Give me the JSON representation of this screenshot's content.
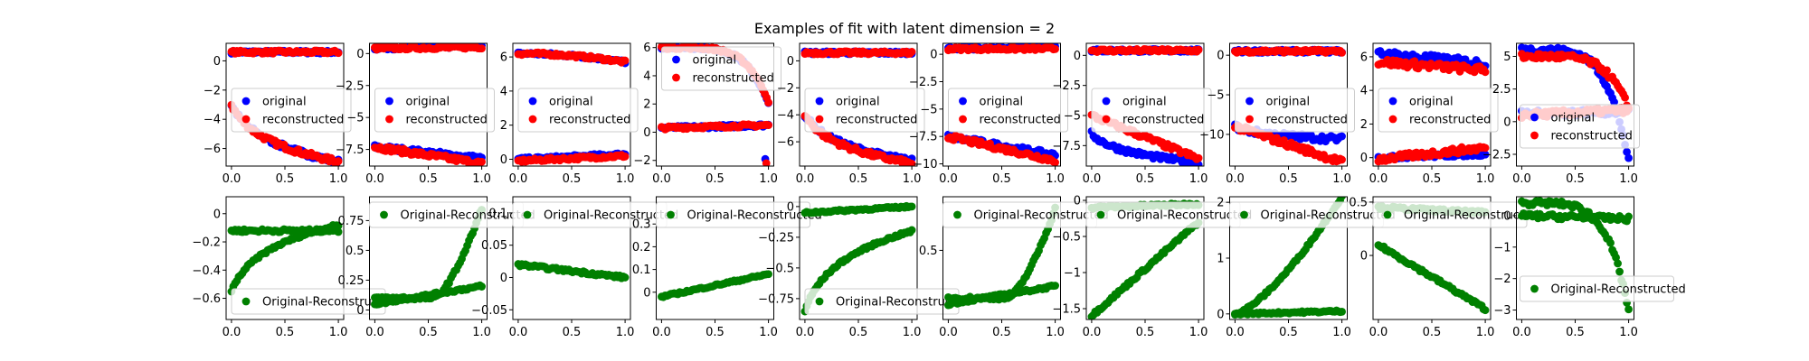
{
  "figure": {
    "title": "Examples of fit with latent dimension = 2",
    "colors": {
      "original": "#0000ff",
      "reconstructed": "#ff0000",
      "difference": "#008000",
      "axes": "#000000",
      "legend_border": "#cccccc"
    }
  },
  "chart_data": {
    "type": "scatter",
    "title": "Examples of fit with latent dimension = 2",
    "panels_per_row": 10,
    "top_row": [
      {
        "ylim": [
          -7.2,
          1.2
        ],
        "yticks": [
          0,
          -2,
          -4,
          -6
        ],
        "xticks": [
          0.0,
          0.5,
          1.0
        ],
        "series": [
          {
            "name": "original",
            "curves": [
              {
                "kind": "flat",
                "y0": 0.6,
                "y1": 0.6,
                "noise": 0.05
              },
              {
                "kind": "logdecay",
                "y0": -3.0,
                "y1": -6.9,
                "noise": 0.08
              }
            ]
          },
          {
            "name": "reconstructed",
            "curves": [
              {
                "kind": "flat",
                "y0": 0.6,
                "y1": 0.6,
                "noise": 0.05
              },
              {
                "kind": "logdecay",
                "y0": -3.0,
                "y1": -6.9,
                "noise": 0.08
              }
            ]
          }
        ],
        "legend_position": "center-left"
      },
      {
        "ylim": [
          -8.8,
          0.8
        ],
        "yticks": [
          0.0,
          -2.5,
          -5.0,
          -7.5
        ],
        "xticks": [
          0.0,
          0.5,
          1.0
        ],
        "series": [
          {
            "name": "original",
            "curves": [
              {
                "kind": "flat",
                "y0": 0.4,
                "y1": 0.6,
                "noise": 0.05
              },
              {
                "kind": "linear",
                "y0": -7.3,
                "y1": -8.2,
                "noise": 0.08
              }
            ]
          },
          {
            "name": "reconstructed",
            "curves": [
              {
                "kind": "flat",
                "y0": 0.4,
                "y1": 0.5,
                "noise": 0.05
              },
              {
                "kind": "linear",
                "y0": -7.3,
                "y1": -8.6,
                "noise": 0.08
              }
            ]
          }
        ],
        "legend_position": "center-left"
      },
      {
        "ylim": [
          -0.4,
          6.8
        ],
        "yticks": [
          0,
          2,
          4,
          6
        ],
        "xticks": [
          0.0,
          0.5,
          1.0
        ],
        "series": [
          {
            "name": "original",
            "curves": [
              {
                "kind": "convexdown",
                "y0": 6.2,
                "y1": 5.7,
                "noise": 0.05
              },
              {
                "kind": "linear",
                "y0": 0.0,
                "y1": 0.3,
                "noise": 0.05
              }
            ]
          },
          {
            "name": "reconstructed",
            "curves": [
              {
                "kind": "convexdown",
                "y0": 6.2,
                "y1": 5.7,
                "noise": 0.05
              },
              {
                "kind": "linear",
                "y0": -0.1,
                "y1": 0.2,
                "noise": 0.05
              }
            ]
          }
        ],
        "legend_position": "center-left"
      },
      {
        "ylim": [
          -2.4,
          6.3
        ],
        "yticks": [
          6,
          4,
          2,
          0,
          -2
        ],
        "xticks": [
          0.0,
          0.5,
          1.0
        ],
        "series": [
          {
            "name": "original",
            "curves": [
              {
                "kind": "flat",
                "y0": 0.3,
                "y1": 0.5,
                "noise": 0.05
              },
              {
                "kind": "drop",
                "y0": 6.0,
                "y1": 2.0,
                "noise": 0.05
              },
              {
                "kind": "point",
                "x": 0.97,
                "y": -1.9
              }
            ]
          },
          {
            "name": "reconstructed",
            "curves": [
              {
                "kind": "flat",
                "y0": 0.3,
                "y1": 0.5,
                "noise": 0.05
              },
              {
                "kind": "drop",
                "y0": 6.0,
                "y1": 2.2,
                "noise": 0.05
              },
              {
                "kind": "point",
                "x": 0.98,
                "y": -2.2
              }
            ]
          }
        ],
        "legend_position": "top-left"
      },
      {
        "ylim": [
          -7.8,
          1.3
        ],
        "yticks": [
          0,
          -2,
          -4,
          -6
        ],
        "xticks": [
          0.0,
          0.5,
          1.0
        ],
        "series": [
          {
            "name": "original",
            "curves": [
              {
                "kind": "flat",
                "y0": 0.6,
                "y1": 0.6,
                "noise": 0.05
              },
              {
                "kind": "logdecay",
                "y0": -4.0,
                "y1": -7.4,
                "noise": 0.08
              }
            ]
          },
          {
            "name": "reconstructed",
            "curves": [
              {
                "kind": "flat",
                "y0": 0.6,
                "y1": 0.6,
                "noise": 0.05
              },
              {
                "kind": "logdecay",
                "y0": -4.0,
                "y1": -7.6,
                "noise": 0.08
              }
            ]
          }
        ],
        "legend_position": "center-left"
      },
      {
        "ylim": [
          -10.2,
          1.0
        ],
        "yticks": [
          0.0,
          -2.5,
          -5.0,
          -7.5,
          -10.0
        ],
        "xticks": [
          0.0,
          0.5,
          1.0
        ],
        "series": [
          {
            "name": "original",
            "curves": [
              {
                "kind": "flat",
                "y0": 0.5,
                "y1": 0.7,
                "noise": 0.05
              },
              {
                "kind": "linear",
                "y0": -7.5,
                "y1": -9.2,
                "noise": 0.08
              }
            ]
          },
          {
            "name": "reconstructed",
            "curves": [
              {
                "kind": "flat",
                "y0": 0.5,
                "y1": 0.5,
                "noise": 0.05
              },
              {
                "kind": "linear",
                "y0": -7.5,
                "y1": -9.7,
                "noise": 0.08
              }
            ]
          }
        ],
        "legend_position": "center-left"
      },
      {
        "ylim": [
          -9.2,
          1.0
        ],
        "yticks": [
          0.0,
          -2.5,
          -5.0,
          -7.5
        ],
        "xticks": [
          0.0,
          0.5,
          1.0
        ],
        "series": [
          {
            "name": "original",
            "curves": [
              {
                "kind": "flat",
                "y0": 0.4,
                "y1": 0.4,
                "noise": 0.05
              },
              {
                "kind": "logdecay",
                "y0": -6.5,
                "y1": -8.9,
                "noise": 0.08
              }
            ]
          },
          {
            "name": "reconstructed",
            "curves": [
              {
                "kind": "flat",
                "y0": 0.4,
                "y1": 0.4,
                "noise": 0.05
              },
              {
                "kind": "linear",
                "y0": -5.0,
                "y1": -8.6,
                "noise": 0.08
              }
            ]
          }
        ],
        "legend_position": "center-left"
      },
      {
        "ylim": [
          -14.0,
          1.5
        ],
        "yticks": [
          0,
          -5,
          -10
        ],
        "xticks": [
          0.0,
          0.5,
          1.0
        ],
        "series": [
          {
            "name": "original",
            "curves": [
              {
                "kind": "flat",
                "y0": 0.5,
                "y1": 0.5,
                "noise": 0.05
              },
              {
                "kind": "logdecay",
                "y0": -9.0,
                "y1": -10.6,
                "noise": 0.1
              }
            ]
          },
          {
            "name": "reconstructed",
            "curves": [
              {
                "kind": "flat",
                "y0": 0.5,
                "y1": 0.5,
                "noise": 0.05
              },
              {
                "kind": "linear",
                "y0": -9.0,
                "y1": -13.5,
                "noise": 0.1
              }
            ]
          }
        ],
        "legend_position": "center-left"
      },
      {
        "ylim": [
          -0.5,
          6.8
        ],
        "yticks": [
          0,
          2,
          4,
          6
        ],
        "xticks": [
          0.0,
          0.5,
          1.0
        ],
        "series": [
          {
            "name": "original",
            "curves": [
              {
                "kind": "linear",
                "y0": 6.2,
                "y1": 5.6,
                "noise": 0.12
              },
              {
                "kind": "flat",
                "y0": 0.0,
                "y1": 0.2,
                "noise": 0.05
              }
            ]
          },
          {
            "name": "reconstructed",
            "curves": [
              {
                "kind": "linear",
                "y0": 5.7,
                "y1": 5.2,
                "noise": 0.12
              },
              {
                "kind": "linear",
                "y0": -0.1,
                "y1": 0.6,
                "noise": 0.1
              }
            ]
          }
        ],
        "legend_position": "center-left"
      },
      {
        "ylim": [
          -3.4,
          6.0
        ],
        "yticks": [
          5.0,
          2.5,
          0.0,
          -2.5
        ],
        "xticks": [
          0.0,
          0.5,
          1.0
        ],
        "series": [
          {
            "name": "original",
            "curves": [
              {
                "kind": "drop",
                "y0": 5.5,
                "y1": -3.0,
                "noise": 0.1
              },
              {
                "kind": "flat",
                "y0": 0.6,
                "y1": 0.8,
                "noise": 0.1
              }
            ]
          },
          {
            "name": "reconstructed",
            "curves": [
              {
                "kind": "drop",
                "y0": 5.0,
                "y1": 1.0,
                "noise": 0.1
              },
              {
                "kind": "flat",
                "y0": 0.5,
                "y1": 0.9,
                "noise": 0.1
              }
            ]
          }
        ],
        "legend_position": "bottom-right"
      }
    ],
    "bottom_row": [
      {
        "ylim": [
          -0.75,
          0.12
        ],
        "yticks": [
          0.0,
          -0.2,
          -0.4,
          -0.6
        ],
        "xticks": [
          0.0,
          0.5,
          1.0
        ],
        "series": [
          {
            "name": "Original-Reconstructed",
            "curves": [
              {
                "kind": "logrise",
                "y0": -0.55,
                "y1": -0.08,
                "noise": 0.04
              },
              {
                "kind": "flat",
                "y0": -0.12,
                "y1": -0.12,
                "noise": 0.05
              }
            ]
          }
        ],
        "legend_position": "bottom-left"
      },
      {
        "ylim": [
          -0.08,
          0.95
        ],
        "yticks": [
          0.0,
          0.25,
          0.5,
          0.75
        ],
        "xticks": [
          0.0,
          0.5,
          1.0
        ],
        "series": [
          {
            "name": "Original-Reconstructed",
            "curves": [
              {
                "kind": "flat",
                "y0": 0.05,
                "y1": 0.2,
                "noise": 0.04
              },
              {
                "kind": "drop_rise",
                "y0": 0.1,
                "y1": 0.85,
                "noise": 0.05
              }
            ]
          }
        ],
        "legend_position": "top-right"
      },
      {
        "ylim": [
          -0.065,
          0.125
        ],
        "yticks": [
          0.1,
          0.05,
          0.0,
          -0.05
        ],
        "xticks": [
          0.0,
          0.5,
          1.0
        ],
        "series": [
          {
            "name": "Original-Reconstructed",
            "curves": [
              {
                "kind": "flat",
                "y0": 0.02,
                "y1": 0.0,
                "noise": 0.045
              }
            ]
          }
        ],
        "legend_position": "top-right"
      },
      {
        "ylim": [
          -0.12,
          0.42
        ],
        "yticks": [
          0.0,
          0.1,
          0.2,
          0.3
        ],
        "xticks": [
          0.0,
          0.5,
          1.0
        ],
        "series": [
          {
            "name": "Original-Reconstructed",
            "curves": [
              {
                "kind": "linear",
                "y0": -0.02,
                "y1": 0.08,
                "noise": 0.03
              }
            ]
          }
        ],
        "legend_position": "top-right"
      },
      {
        "ylim": [
          -0.92,
          0.08
        ],
        "yticks": [
          0.0,
          -0.25,
          -0.5,
          -0.75
        ],
        "xticks": [
          0.0,
          0.5,
          1.0
        ],
        "series": [
          {
            "name": "Original-Reconstructed",
            "curves": [
              {
                "kind": "logrise",
                "y0": -0.85,
                "y1": -0.2,
                "noise": 0.04
              },
              {
                "kind": "flat",
                "y0": -0.05,
                "y1": 0.0,
                "noise": 0.03
              }
            ]
          }
        ],
        "legend_position": "bottom-left"
      },
      {
        "ylim": [
          -0.08,
          0.95
        ],
        "yticks": [
          0.5
        ],
        "xticks": [
          0.0,
          0.5,
          1.0
        ],
        "series": [
          {
            "name": "Original-Reconstructed",
            "curves": [
              {
                "kind": "flat",
                "y0": 0.05,
                "y1": 0.2,
                "noise": 0.04
              },
              {
                "kind": "drop_rise",
                "y0": 0.1,
                "y1": 0.85,
                "noise": 0.05
              }
            ]
          }
        ],
        "legend_position": "top-right"
      },
      {
        "ylim": [
          -1.65,
          0.05
        ],
        "yticks": [
          0.0,
          -0.5,
          -1.0,
          -1.5
        ],
        "xticks": [
          0.0,
          0.5,
          1.0
        ],
        "series": [
          {
            "name": "Original-Reconstructed",
            "curves": [
              {
                "kind": "flat",
                "y0": -0.1,
                "y1": -0.05,
                "noise": 0.04
              },
              {
                "kind": "linear",
                "y0": -1.6,
                "y1": -0.3,
                "noise": 0.05
              }
            ]
          }
        ],
        "legend_position": "top-right"
      },
      {
        "ylim": [
          -0.1,
          2.1
        ],
        "yticks": [
          2,
          1,
          0
        ],
        "xticks": [
          0.0,
          0.5,
          1.0
        ],
        "series": [
          {
            "name": "Original-Reconstructed",
            "curves": [
              {
                "kind": "flat",
                "y0": 0.0,
                "y1": 0.05,
                "noise": 0.03
              },
              {
                "kind": "convexup",
                "y0": 0.0,
                "y1": 2.1,
                "noise": 0.04
              }
            ]
          }
        ],
        "legend_position": "top-right"
      },
      {
        "ylim": [
          -0.6,
          0.55
        ],
        "yticks": [
          0.5,
          0.0
        ],
        "xticks": [
          0.0,
          0.5,
          1.0
        ],
        "series": [
          {
            "name": "Original-Reconstructed",
            "curves": [
              {
                "kind": "flat",
                "y0": 0.45,
                "y1": 0.4,
                "noise": 0.05
              },
              {
                "kind": "linear",
                "y0": 0.1,
                "y1": -0.5,
                "noise": 0.05
              }
            ]
          }
        ],
        "legend_position": "top-right"
      },
      {
        "ylim": [
          -3.3,
          0.6
        ],
        "yticks": [
          0,
          -1,
          -2,
          -3
        ],
        "xticks": [
          0.0,
          0.5,
          1.0
        ],
        "series": [
          {
            "name": "Original-Reconstructed",
            "curves": [
              {
                "kind": "drop",
                "y0": 0.4,
                "y1": -3.0,
                "noise": 0.08
              },
              {
                "kind": "flat",
                "y0": 0.0,
                "y1": -0.1,
                "noise": 0.08
              }
            ]
          }
        ],
        "legend_position": "bottom-right"
      }
    ]
  }
}
